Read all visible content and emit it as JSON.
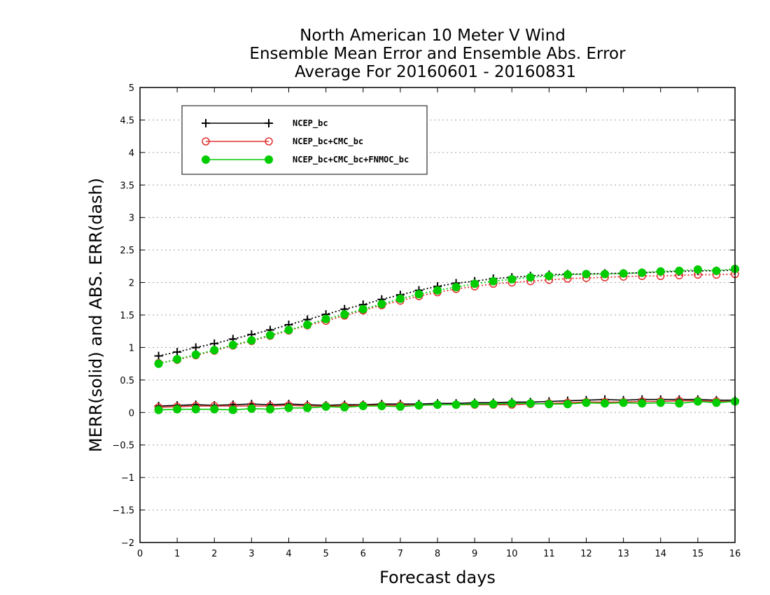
{
  "chart_data": {
    "type": "line",
    "title_lines": [
      "North American 10 Meter V Wind",
      "Ensemble Mean Error and Ensemble Abs. Error",
      "Average For 20160601 - 20160831"
    ],
    "xlabel": "Forecast days",
    "ylabel": "MERR(solid) and ABS. ERR(dash)",
    "xlim": [
      0,
      16
    ],
    "ylim": [
      -2,
      5
    ],
    "x_ticks": [
      "0",
      "1",
      "2",
      "3",
      "4",
      "5",
      "6",
      "7",
      "8",
      "9",
      "10",
      "11",
      "12",
      "13",
      "14",
      "15",
      "16"
    ],
    "y_ticks": [
      "-2",
      "-1.5",
      "-1",
      "-0.5",
      "0",
      "0.5",
      "1",
      "1.5",
      "2",
      "2.5",
      "3",
      "3.5",
      "4",
      "4.5",
      "5"
    ],
    "grid": "horizontal dotted",
    "legend_position": "top-left",
    "x": [
      0.5,
      1,
      1.5,
      2,
      2.5,
      3,
      3.5,
      4,
      4.5,
      5,
      5.5,
      6,
      6.5,
      7,
      7.5,
      8,
      8.5,
      9,
      9.5,
      10,
      10.5,
      11,
      11.5,
      12,
      12.5,
      13,
      13.5,
      14,
      14.5,
      15,
      15.5,
      16
    ],
    "series": [
      {
        "name": "NCEP_bc",
        "color": "#000000",
        "marker": "plus",
        "merr": [
          0.1,
          0.11,
          0.12,
          0.11,
          0.12,
          0.13,
          0.12,
          0.13,
          0.12,
          0.11,
          0.12,
          0.12,
          0.13,
          0.13,
          0.13,
          0.14,
          0.14,
          0.15,
          0.15,
          0.16,
          0.16,
          0.17,
          0.18,
          0.19,
          0.2,
          0.19,
          0.2,
          0.2,
          0.2,
          0.2,
          0.19,
          0.19
        ],
        "abs_err": [
          0.87,
          0.93,
          1.0,
          1.06,
          1.13,
          1.2,
          1.27,
          1.35,
          1.43,
          1.51,
          1.59,
          1.66,
          1.74,
          1.81,
          1.88,
          1.94,
          1.99,
          2.02,
          2.06,
          2.08,
          2.1,
          2.12,
          2.13,
          2.13,
          2.14,
          2.14,
          2.15,
          2.16,
          2.17,
          2.18,
          2.18,
          2.19
        ]
      },
      {
        "name": "NCEP_bc+CMC_bc",
        "color": "#e03030",
        "marker": "open-circle",
        "merr": [
          0.08,
          0.09,
          0.1,
          0.1,
          0.1,
          0.1,
          0.1,
          0.11,
          0.1,
          0.1,
          0.1,
          0.11,
          0.11,
          0.11,
          0.11,
          0.12,
          0.12,
          0.12,
          0.12,
          0.12,
          0.13,
          0.14,
          0.15,
          0.16,
          0.16,
          0.16,
          0.17,
          0.17,
          0.18,
          0.18,
          0.17,
          0.17
        ],
        "abs_err": [
          0.76,
          0.81,
          0.88,
          0.95,
          1.03,
          1.1,
          1.18,
          1.26,
          1.34,
          1.41,
          1.49,
          1.57,
          1.65,
          1.72,
          1.79,
          1.85,
          1.9,
          1.94,
          1.98,
          2.0,
          2.02,
          2.04,
          2.06,
          2.07,
          2.08,
          2.09,
          2.1,
          2.1,
          2.11,
          2.12,
          2.12,
          2.13
        ]
      },
      {
        "name": "NCEP_bc+CMC_bc+FNMOC_bc",
        "color": "#00cc00",
        "marker": "filled-circle",
        "merr": [
          0.04,
          0.05,
          0.05,
          0.05,
          0.04,
          0.06,
          0.05,
          0.07,
          0.07,
          0.09,
          0.08,
          0.1,
          0.1,
          0.09,
          0.11,
          0.12,
          0.12,
          0.13,
          0.13,
          0.14,
          0.14,
          0.13,
          0.13,
          0.15,
          0.14,
          0.15,
          0.14,
          0.15,
          0.14,
          0.17,
          0.15,
          0.17
        ],
        "abs_err": [
          0.75,
          0.82,
          0.89,
          0.96,
          1.04,
          1.11,
          1.19,
          1.27,
          1.35,
          1.44,
          1.51,
          1.59,
          1.67,
          1.75,
          1.82,
          1.88,
          1.93,
          1.98,
          2.02,
          2.05,
          2.08,
          2.1,
          2.12,
          2.13,
          2.13,
          2.14,
          2.15,
          2.17,
          2.18,
          2.2,
          2.18,
          2.21
        ]
      }
    ]
  }
}
